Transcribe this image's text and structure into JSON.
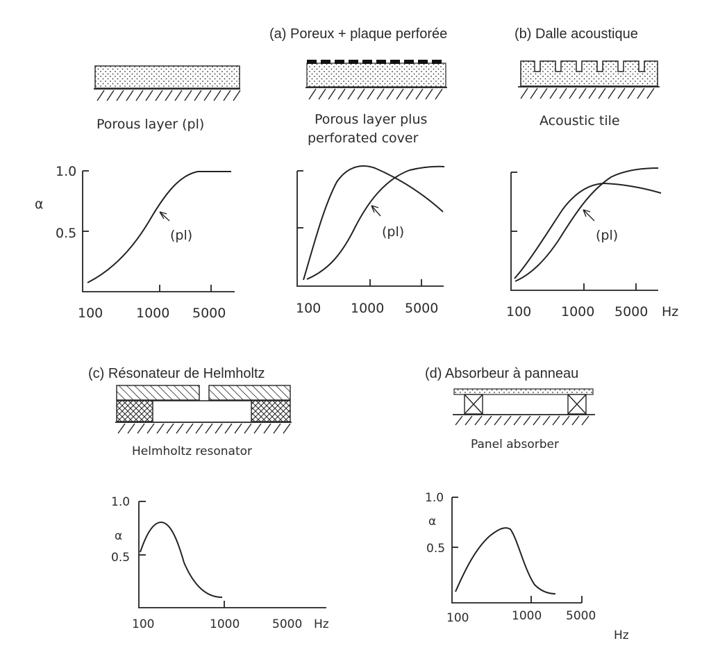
{
  "captions": {
    "a": "(a) Poreux + plaque perforée",
    "b": "(b) Dalle acoustique",
    "c": "(c) Résonateur de Helmholtz",
    "d": "(d) Absorbeur à panneau"
  },
  "sketch_labels": {
    "porous": "Porous layer (pl)",
    "perforated_1": "Porous layer plus",
    "perforated_2": "perforated cover",
    "tile": "Acoustic tile",
    "helmholtz": "Helmholtz resonator",
    "panel": "Panel absorber"
  },
  "axes": {
    "alpha": "α",
    "y_max": "1.0",
    "y_mid": "0.5",
    "x_ticks": [
      "100",
      "1000",
      "5000"
    ],
    "unit": "Hz",
    "pl": "(pl)"
  },
  "chart_data": [
    {
      "type": "line",
      "panel": "porous layer",
      "x": [
        80,
        200,
        500,
        1000,
        2000,
        3000,
        7000
      ],
      "series": [
        {
          "name": "(pl)",
          "values": [
            0.1,
            0.25,
            0.5,
            0.75,
            0.95,
            1.0,
            1.0
          ]
        }
      ],
      "ylim": [
        0,
        1.0
      ]
    },
    {
      "type": "line",
      "panel": "porous layer plus perforated cover",
      "x": [
        80,
        200,
        500,
        1000,
        2000,
        5000,
        8000
      ],
      "series": [
        {
          "values": [
            0.05,
            0.6,
            0.95,
            1.0,
            0.95,
            0.75,
            0.6
          ]
        },
        {
          "name": "(pl)",
          "values": [
            0.05,
            0.15,
            0.45,
            0.7,
            0.9,
            1.0,
            1.0
          ]
        }
      ]
    },
    {
      "type": "line",
      "panel": "acoustic tile",
      "x": [
        80,
        200,
        500,
        1000,
        2000,
        5000,
        8000
      ],
      "series": [
        {
          "values": [
            0.05,
            0.3,
            0.65,
            0.85,
            0.9,
            0.85,
            0.8
          ]
        },
        {
          "name": "(pl)",
          "values": [
            0.05,
            0.2,
            0.5,
            0.75,
            0.92,
            1.0,
            1.0
          ]
        }
      ]
    },
    {
      "type": "line",
      "panel": "Helmholtz resonator",
      "x": [
        100,
        150,
        250,
        500,
        800
      ],
      "series": [
        {
          "values": [
            0.55,
            0.8,
            0.6,
            0.25,
            0.12
          ]
        }
      ],
      "ylim": [
        0,
        1.0
      ]
    },
    {
      "type": "line",
      "panel": "panel absorber",
      "x": [
        100,
        200,
        400,
        600,
        1000,
        2000
      ],
      "series": [
        {
          "values": [
            0.1,
            0.45,
            0.7,
            0.55,
            0.2,
            0.1
          ]
        }
      ],
      "ylim": [
        0,
        1.0
      ]
    }
  ]
}
